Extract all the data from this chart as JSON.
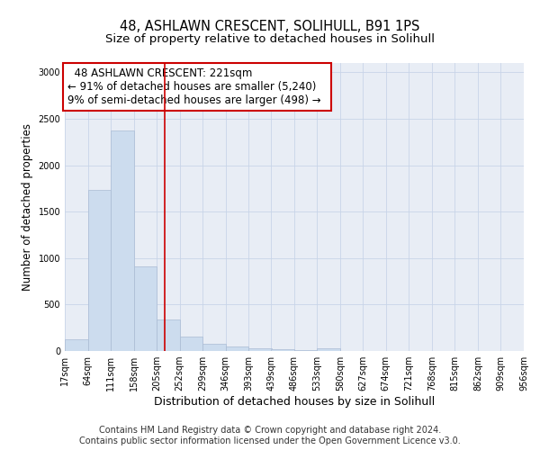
{
  "title": "48, ASHLAWN CRESCENT, SOLIHULL, B91 1PS",
  "subtitle": "Size of property relative to detached houses in Solihull",
  "xlabel": "Distribution of detached houses by size in Solihull",
  "ylabel": "Number of detached properties",
  "footer_line1": "Contains HM Land Registry data © Crown copyright and database right 2024.",
  "footer_line2": "Contains public sector information licensed under the Open Government Licence v3.0.",
  "annotation_title": "48 ASHLAWN CRESCENT: 221sqm",
  "annotation_line1": "← 91% of detached houses are smaller (5,240)",
  "annotation_line2": "9% of semi-detached houses are larger (498) →",
  "bin_edges": [
    17,
    64,
    111,
    158,
    205,
    252,
    299,
    346,
    393,
    439,
    486,
    533,
    580,
    627,
    674,
    721,
    768,
    815,
    862,
    909,
    956
  ],
  "bar_heights": [
    130,
    1730,
    2370,
    910,
    340,
    155,
    80,
    45,
    30,
    20,
    5,
    30,
    0,
    0,
    0,
    0,
    0,
    0,
    0,
    0
  ],
  "bar_color": "#ccdcee",
  "bar_edge_color": "#aabbd4",
  "vline_color": "#cc0000",
  "vline_x": 221,
  "xlim": [
    17,
    956
  ],
  "ylim": [
    0,
    3100
  ],
  "yticks": [
    0,
    500,
    1000,
    1500,
    2000,
    2500,
    3000
  ],
  "grid_color": "#c8d4e8",
  "bg_color": "#e8edf5",
  "annotation_box_color": "#ffffff",
  "annotation_box_edge": "#cc0000",
  "title_fontsize": 10.5,
  "subtitle_fontsize": 9.5,
  "xlabel_fontsize": 9,
  "ylabel_fontsize": 8.5,
  "tick_fontsize": 7,
  "annotation_fontsize": 8.5,
  "footer_fontsize": 7
}
